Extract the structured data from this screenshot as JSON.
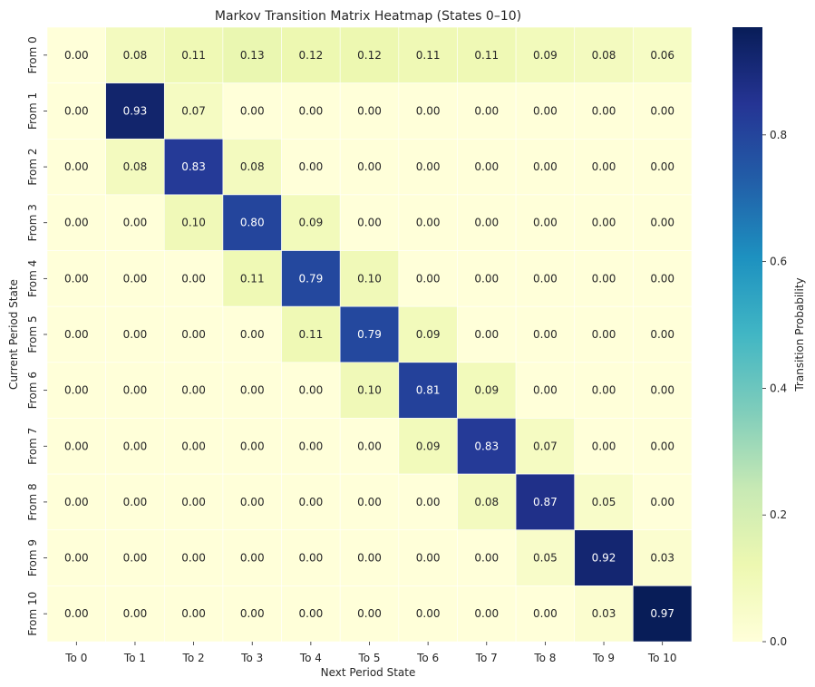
{
  "chart_data": {
    "type": "heatmap",
    "title": "Markov Transition Matrix Heatmap (States 0–10)",
    "xlabel": "Next Period State",
    "ylabel": "Current Period State",
    "x_categories": [
      "To 0",
      "To 1",
      "To 2",
      "To 3",
      "To 4",
      "To 5",
      "To 6",
      "To 7",
      "To 8",
      "To 9",
      "To 10"
    ],
    "y_categories": [
      "From 0",
      "From 1",
      "From 2",
      "From 3",
      "From 4",
      "From 5",
      "From 6",
      "From 7",
      "From 8",
      "From 9",
      "From 10"
    ],
    "values": [
      [
        0.0,
        0.08,
        0.11,
        0.13,
        0.12,
        0.12,
        0.11,
        0.11,
        0.09,
        0.08,
        0.06
      ],
      [
        0.0,
        0.93,
        0.07,
        0.0,
        0.0,
        0.0,
        0.0,
        0.0,
        0.0,
        0.0,
        0.0
      ],
      [
        0.0,
        0.08,
        0.83,
        0.08,
        0.0,
        0.0,
        0.0,
        0.0,
        0.0,
        0.0,
        0.0
      ],
      [
        0.0,
        0.0,
        0.1,
        0.8,
        0.09,
        0.0,
        0.0,
        0.0,
        0.0,
        0.0,
        0.0
      ],
      [
        0.0,
        0.0,
        0.0,
        0.11,
        0.79,
        0.1,
        0.0,
        0.0,
        0.0,
        0.0,
        0.0
      ],
      [
        0.0,
        0.0,
        0.0,
        0.0,
        0.11,
        0.79,
        0.09,
        0.0,
        0.0,
        0.0,
        0.0
      ],
      [
        0.0,
        0.0,
        0.0,
        0.0,
        0.0,
        0.1,
        0.81,
        0.09,
        0.0,
        0.0,
        0.0
      ],
      [
        0.0,
        0.0,
        0.0,
        0.0,
        0.0,
        0.0,
        0.09,
        0.83,
        0.07,
        0.0,
        0.0
      ],
      [
        0.0,
        0.0,
        0.0,
        0.0,
        0.0,
        0.0,
        0.0,
        0.08,
        0.87,
        0.05,
        0.0
      ],
      [
        0.0,
        0.0,
        0.0,
        0.0,
        0.0,
        0.0,
        0.0,
        0.0,
        0.05,
        0.92,
        0.03
      ],
      [
        0.0,
        0.0,
        0.0,
        0.0,
        0.0,
        0.0,
        0.0,
        0.0,
        0.0,
        0.03,
        0.97
      ]
    ],
    "value_format": "0.00",
    "colormap": "YlGnBu",
    "color_range": [
      0.0,
      0.97
    ],
    "colorbar": {
      "label": "Transition Probability",
      "ticks": [
        "0.0",
        "0.2",
        "0.4",
        "0.6",
        "0.8"
      ]
    },
    "annotated": true,
    "grid": false
  }
}
